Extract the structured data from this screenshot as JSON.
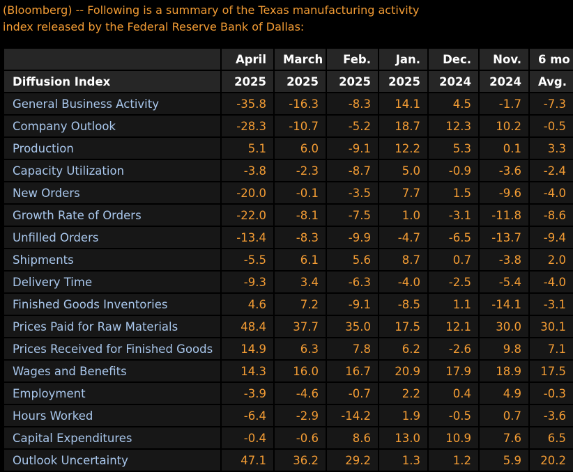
{
  "intro": {
    "lines": [
      "(Bloomberg) -- Following is a summary of the Texas manufacturing activity",
      "index released by the Federal Reserve Bank of Dallas:"
    ]
  },
  "table": {
    "header": [
      [
        "",
        "April",
        "March",
        "Feb.",
        "Jan.",
        "Dec.",
        "Nov.",
        "6 mo"
      ],
      [
        "Diffusion Index",
        "2025",
        "2025",
        "2025",
        "2025",
        "2024",
        "2024",
        "Avg."
      ]
    ],
    "rows": [
      [
        "General Business Activity",
        "-35.8",
        "-16.3",
        "-8.3",
        "14.1",
        "4.5",
        "-1.7",
        "-7.3"
      ],
      [
        "Company Outlook",
        "-28.3",
        "-10.7",
        "-5.2",
        "18.7",
        "12.3",
        "10.2",
        "-0.5"
      ],
      [
        "Production",
        "5.1",
        "6.0",
        "-9.1",
        "12.2",
        "5.3",
        "0.1",
        "3.3"
      ],
      [
        "Capacity Utilization",
        "-3.8",
        "-2.3",
        "-8.7",
        "5.0",
        "-0.9",
        "-3.6",
        "-2.4"
      ],
      [
        "New Orders",
        "-20.0",
        "-0.1",
        "-3.5",
        "7.7",
        "1.5",
        "-9.6",
        "-4.0"
      ],
      [
        "Growth Rate of Orders",
        "-22.0",
        "-8.1",
        "-7.5",
        "1.0",
        "-3.1",
        "-11.8",
        "-8.6"
      ],
      [
        "Unfilled Orders",
        "-13.4",
        "-8.3",
        "-9.9",
        "-4.7",
        "-6.5",
        "-13.7",
        "-9.4"
      ],
      [
        "Shipments",
        "-5.5",
        "6.1",
        "5.6",
        "8.7",
        "0.7",
        "-3.8",
        "2.0"
      ],
      [
        "Delivery Time",
        "-9.3",
        "3.4",
        "-6.3",
        "-4.0",
        "-2.5",
        "-5.4",
        "-4.0"
      ],
      [
        "Finished Goods Inventories",
        "4.6",
        "7.2",
        "-9.1",
        "-8.5",
        "1.1",
        "-14.1",
        "-3.1"
      ],
      [
        "Prices Paid for Raw Materials",
        "48.4",
        "37.7",
        "35.0",
        "17.5",
        "12.1",
        "30.0",
        "30.1"
      ],
      [
        "Prices Received for Finished Goods",
        "14.9",
        "6.3",
        "7.8",
        "6.2",
        "-2.6",
        "9.8",
        "7.1"
      ],
      [
        "Wages and Benefits",
        "14.3",
        "16.0",
        "16.7",
        "20.9",
        "17.9",
        "18.9",
        "17.5"
      ],
      [
        "Employment",
        "-3.9",
        "-4.6",
        "-0.7",
        "2.2",
        "0.4",
        "4.9",
        "-0.3"
      ],
      [
        "Hours Worked",
        "-6.4",
        "-2.9",
        "-14.2",
        "1.9",
        "-0.5",
        "0.7",
        "-3.6"
      ],
      [
        "Capital Expenditures",
        "-0.4",
        "-0.6",
        "8.6",
        "13.0",
        "10.9",
        "7.6",
        "6.5"
      ],
      [
        "Outlook Uncertainty",
        "47.1",
        "36.2",
        "29.2",
        "1.3",
        "1.2",
        "5.9",
        "20.2"
      ]
    ]
  }
}
